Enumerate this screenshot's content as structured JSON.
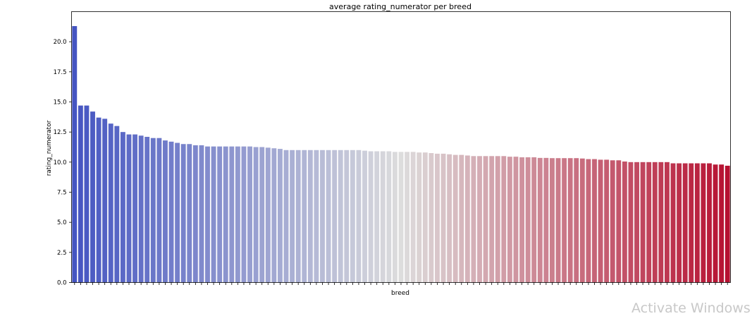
{
  "chart_data": {
    "type": "bar",
    "title": "average rating_numerator per breed",
    "xlabel": "breed",
    "ylabel": "rating_numerator",
    "ylim": [
      0,
      22.5
    ],
    "yticks": [
      "0.0",
      "2.5",
      "5.0",
      "7.5",
      "10.0",
      "12.5",
      "15.0",
      "17.5",
      "20.0"
    ],
    "ytick_values": [
      0,
      2.5,
      5,
      7.5,
      10,
      12.5,
      15,
      17.5,
      20
    ],
    "xtick_labels_visible": false,
    "grid": false,
    "palette": "coolwarm",
    "values": [
      21.3,
      14.7,
      14.7,
      14.2,
      13.7,
      13.6,
      13.2,
      13.0,
      12.5,
      12.3,
      12.3,
      12.2,
      12.1,
      12.0,
      12.0,
      11.8,
      11.7,
      11.6,
      11.5,
      11.5,
      11.4,
      11.4,
      11.3,
      11.3,
      11.3,
      11.3,
      11.3,
      11.3,
      11.3,
      11.3,
      11.25,
      11.25,
      11.2,
      11.15,
      11.1,
      11.0,
      11.0,
      11.0,
      11.0,
      11.0,
      11.0,
      11.0,
      11.0,
      11.0,
      11.0,
      11.0,
      11.0,
      11.0,
      10.95,
      10.9,
      10.9,
      10.9,
      10.9,
      10.85,
      10.85,
      10.85,
      10.85,
      10.8,
      10.8,
      10.75,
      10.7,
      10.7,
      10.65,
      10.6,
      10.6,
      10.55,
      10.5,
      10.5,
      10.5,
      10.5,
      10.5,
      10.5,
      10.45,
      10.45,
      10.4,
      10.4,
      10.4,
      10.35,
      10.35,
      10.33,
      10.33,
      10.33,
      10.33,
      10.33,
      10.3,
      10.25,
      10.25,
      10.2,
      10.2,
      10.15,
      10.15,
      10.05,
      10.0,
      10.0,
      10.0,
      10.0,
      10.0,
      10.0,
      10.0,
      9.9,
      9.9,
      9.9,
      9.9,
      9.9,
      9.9,
      9.9,
      9.8,
      9.8,
      9.7
    ]
  },
  "watermark": "Activate Windows"
}
